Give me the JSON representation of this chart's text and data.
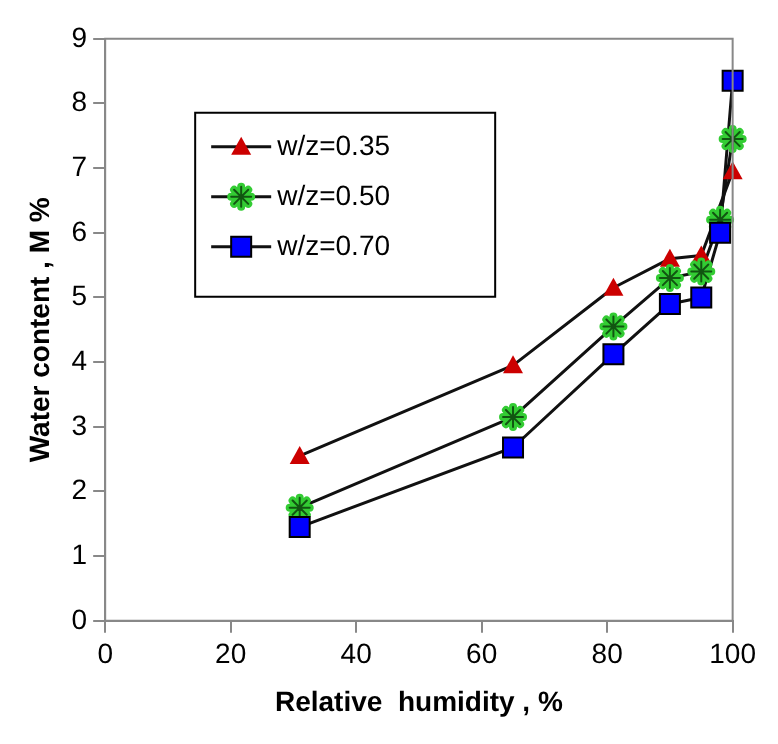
{
  "chart_data": {
    "type": "line",
    "xlabel": "Relative  humidity , %",
    "ylabel": "Water content , M %",
    "xlim": [
      0,
      100
    ],
    "xticks": [
      0,
      20,
      40,
      60,
      80,
      100
    ],
    "ylim": [
      0,
      9
    ],
    "yticks": [
      0,
      1,
      2,
      3,
      4,
      5,
      6,
      7,
      8,
      9
    ],
    "grid": false,
    "legend": "top left",
    "series": [
      {
        "name": "w/z=0.35",
        "color": "#cc0000",
        "marker": "triangle",
        "x": [
          31,
          65,
          81,
          90,
          95,
          100
        ],
        "values": [
          2.55,
          3.95,
          5.15,
          5.6,
          5.65,
          6.95
        ]
      },
      {
        "name": "w/z=0.50",
        "color": "#33cc33",
        "marker": "cross",
        "x": [
          31,
          65,
          81,
          90,
          95,
          98,
          100
        ],
        "values": [
          1.75,
          3.15,
          4.55,
          5.3,
          5.4,
          6.2,
          7.45
        ]
      },
      {
        "name": "w/z=0.70",
        "color": "#0000ff",
        "marker": "square",
        "x": [
          31,
          65,
          81,
          90,
          95,
          98,
          100
        ],
        "values": [
          1.45,
          2.68,
          4.12,
          4.9,
          5.0,
          6.0,
          8.35
        ]
      }
    ]
  }
}
